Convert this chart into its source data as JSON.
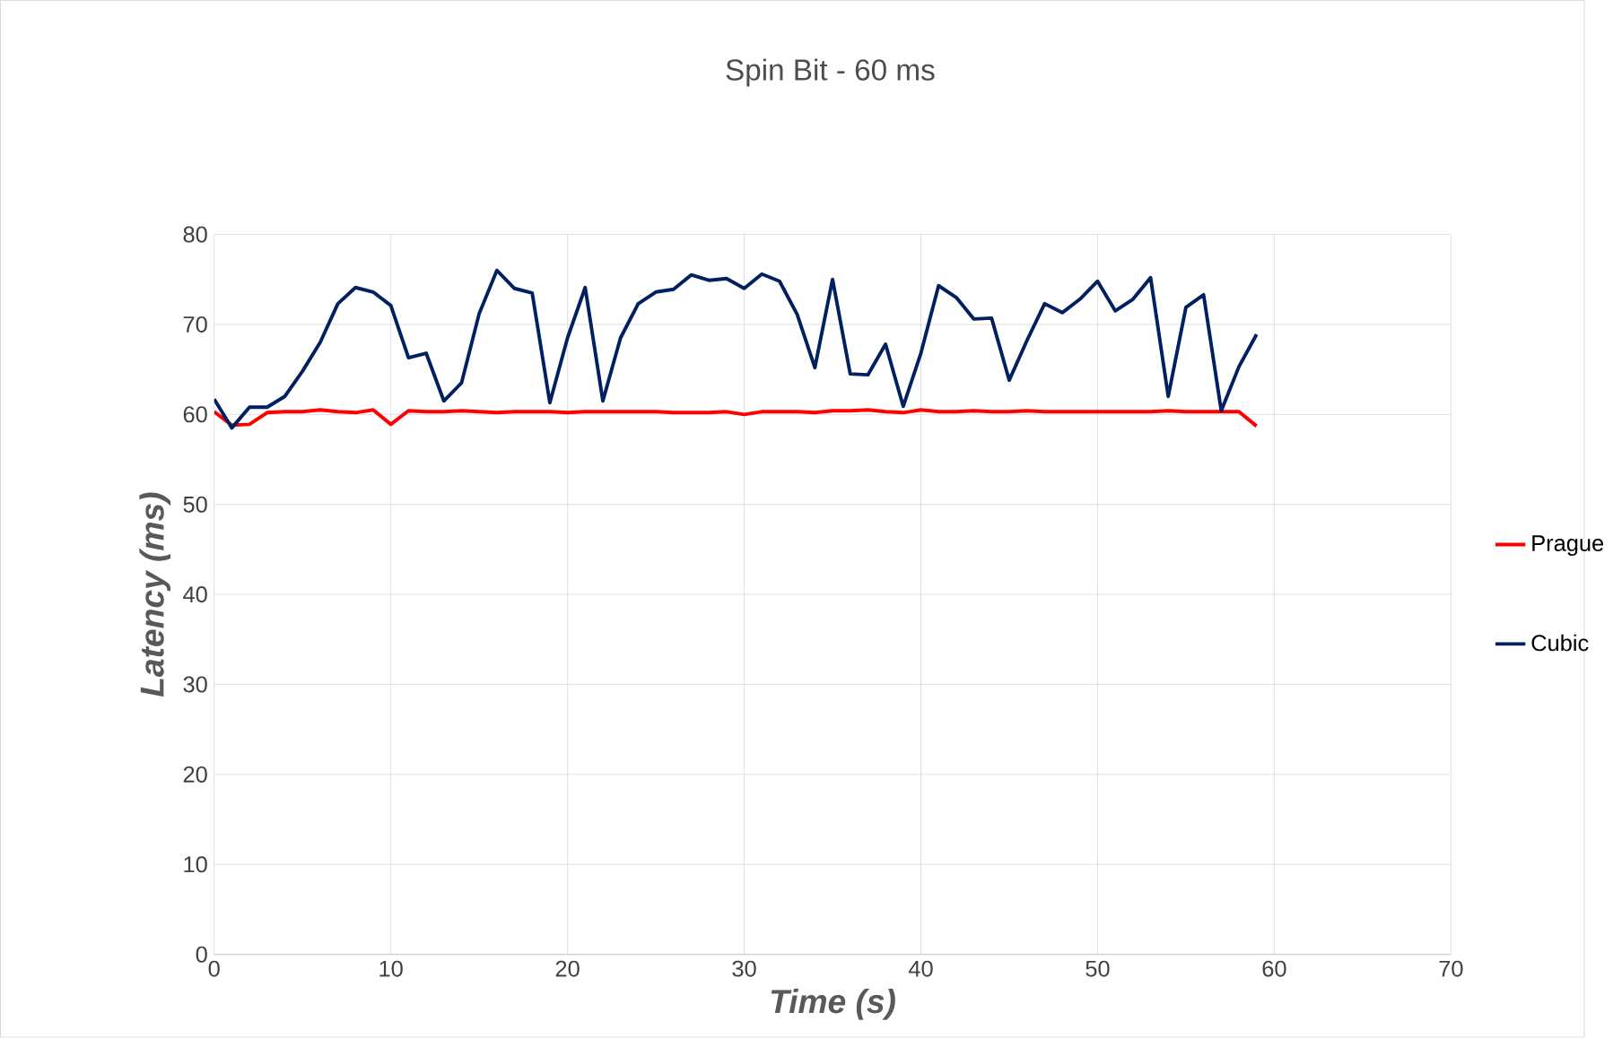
{
  "chart_data": {
    "type": "line",
    "title": "Spin Bit - 60 ms",
    "xlabel": "Time (s)",
    "ylabel": "Latency (ms)",
    "xlim": [
      0,
      70
    ],
    "xticks": [
      0,
      10,
      20,
      30,
      40,
      50,
      60,
      70
    ],
    "ylim": [
      0,
      80
    ],
    "yticks": [
      0,
      10,
      20,
      30,
      40,
      50,
      60,
      70,
      80
    ],
    "grid": true,
    "legend": "right",
    "marker": "none",
    "line_style": "solid",
    "x": [
      0,
      1,
      2,
      3,
      4,
      5,
      6,
      7,
      8,
      9,
      10,
      11,
      12,
      13,
      14,
      15,
      16,
      17,
      18,
      19,
      20,
      21,
      22,
      23,
      24,
      25,
      26,
      27,
      28,
      29,
      30,
      31,
      32,
      33,
      34,
      35,
      36,
      37,
      38,
      39,
      40,
      41,
      42,
      43,
      44,
      45,
      46,
      47,
      48,
      49,
      50,
      51,
      52,
      53,
      54,
      55,
      56,
      57,
      58,
      59
    ],
    "series": [
      {
        "name": "Prague",
        "color": "#ff0000",
        "values": [
          60.3,
          58.8,
          58.9,
          60.2,
          60.3,
          60.3,
          60.5,
          60.3,
          60.2,
          60.5,
          58.9,
          60.4,
          60.3,
          60.3,
          60.4,
          60.3,
          60.2,
          60.3,
          60.3,
          60.3,
          60.2,
          60.3,
          60.3,
          60.3,
          60.3,
          60.3,
          60.2,
          60.2,
          60.2,
          60.3,
          60.0,
          60.3,
          60.3,
          60.3,
          60.2,
          60.4,
          60.4,
          60.5,
          60.3,
          60.2,
          60.5,
          60.3,
          60.3,
          60.4,
          60.3,
          60.3,
          60.4,
          60.3,
          60.3,
          60.3,
          60.3,
          60.3,
          60.3,
          60.3,
          60.4,
          60.3,
          60.3,
          60.3,
          60.3,
          58.7
        ]
      },
      {
        "name": "Cubic",
        "color": "#002060",
        "values": [
          61.7,
          58.5,
          60.8,
          60.8,
          62.0,
          64.8,
          68.0,
          72.3,
          74.1,
          73.6,
          72.1,
          66.3,
          66.8,
          61.5,
          63.5,
          71.2,
          76.0,
          74.0,
          73.5,
          61.3,
          68.5,
          74.1,
          61.5,
          68.5,
          72.3,
          73.6,
          73.9,
          75.5,
          74.9,
          75.1,
          74.0,
          75.6,
          74.8,
          71.1,
          65.2,
          75.0,
          64.5,
          64.4,
          67.8,
          60.9,
          66.8,
          74.3,
          73.0,
          70.6,
          70.7,
          63.8,
          68.2,
          72.3,
          71.3,
          72.8,
          74.8,
          71.5,
          72.8,
          75.2,
          62.0,
          71.9,
          73.3,
          60.4,
          65.3,
          68.9
        ]
      }
    ]
  }
}
